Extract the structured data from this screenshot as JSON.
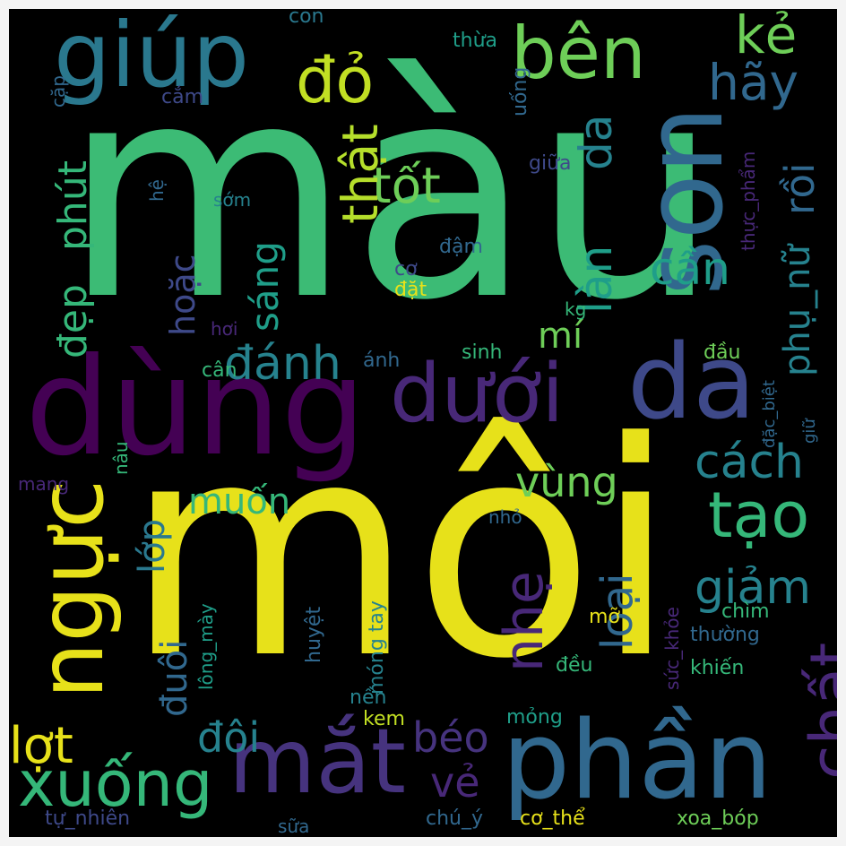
{
  "palette": {
    "yellow": "#e7e11a",
    "lime": "#b5de2b",
    "lightgreen": "#6ece58",
    "green": "#35b779",
    "teal": "#1f9e89",
    "cyan": "#26828e",
    "blue": "#31688e",
    "indigo": "#3e4989",
    "purple": "#482878",
    "violet": "#440154"
  },
  "words": [
    {
      "text": "màu",
      "color": "#3cbb75"
    },
    {
      "text": "môi",
      "color": "#e7e11a"
    },
    {
      "text": "dùng",
      "color": "#440154"
    },
    {
      "text": "da",
      "color": "#3e4989"
    },
    {
      "text": "dưới",
      "color": "#482878"
    },
    {
      "text": "phần",
      "color": "#31688e"
    },
    {
      "text": "mắt",
      "color": "#46337e"
    },
    {
      "text": "ngực",
      "color": "#e7e11a"
    },
    {
      "text": "son",
      "color": "#31688e"
    },
    {
      "text": "giúp",
      "color": "#2a788e"
    },
    {
      "text": "bên",
      "color": "#6ece58"
    },
    {
      "text": "xuống",
      "color": "#35b779"
    },
    {
      "text": "tạo",
      "color": "#35b779"
    },
    {
      "text": "chất",
      "color": "#482878"
    },
    {
      "text": "đỏ",
      "color": "#c2df23"
    },
    {
      "text": "kẻ",
      "color": "#6ece58"
    },
    {
      "text": "hãy",
      "color": "#31688e"
    },
    {
      "text": "tốt",
      "color": "#6ece58"
    },
    {
      "text": "thật",
      "color": "#b5de2b"
    },
    {
      "text": "làn",
      "color": "#1f9e89"
    },
    {
      "text": "da",
      "color": "#26828e"
    },
    {
      "text": "cần",
      "color": "#1f9e89"
    },
    {
      "text": "rồi",
      "color": "#31688e"
    },
    {
      "text": "phụ_nữ",
      "color": "#26828e"
    },
    {
      "text": "đẹp",
      "color": "#35b779"
    },
    {
      "text": "phút",
      "color": "#35b779"
    },
    {
      "text": "sáng",
      "color": "#1f9e89"
    },
    {
      "text": "hoặc",
      "color": "#3e4989"
    },
    {
      "text": "đánh",
      "color": "#26828e"
    },
    {
      "text": "mí",
      "color": "#6ece58"
    },
    {
      "text": "cách",
      "color": "#26828e"
    },
    {
      "text": "vùng",
      "color": "#6ece58"
    },
    {
      "text": "muốn",
      "color": "#35b779"
    },
    {
      "text": "lớp",
      "color": "#2a788e"
    },
    {
      "text": "loại",
      "color": "#31688e"
    },
    {
      "text": "nhẹ",
      "color": "#482878"
    },
    {
      "text": "giảm",
      "color": "#26828e"
    },
    {
      "text": "đuôi",
      "color": "#31688e"
    },
    {
      "text": "đôi",
      "color": "#26828e"
    },
    {
      "text": "béo",
      "color": "#46337e"
    },
    {
      "text": "vẻ",
      "color": "#482878"
    },
    {
      "text": "lợt",
      "color": "#e7e11a"
    },
    {
      "text": "thừa",
      "color": "#1f9e89"
    },
    {
      "text": "uống",
      "color": "#31688e"
    },
    {
      "text": "con",
      "color": "#2a788e"
    },
    {
      "text": "cặp",
      "color": "#31688e"
    },
    {
      "text": "cắm",
      "color": "#3e4989"
    },
    {
      "text": "thực_phẩm",
      "color": "#482878"
    },
    {
      "text": "giữa",
      "color": "#3e4989"
    },
    {
      "text": "hệ",
      "color": "#31688e"
    },
    {
      "text": "sớm",
      "color": "#26828e"
    },
    {
      "text": "đậm",
      "color": "#31688e"
    },
    {
      "text": "cơ",
      "color": "#3e4989"
    },
    {
      "text": "đặt",
      "color": "#e7e11a"
    },
    {
      "text": "kg",
      "color": "#35b779"
    },
    {
      "text": "hơi",
      "color": "#482878"
    },
    {
      "text": "cân",
      "color": "#35b779"
    },
    {
      "text": "ánh",
      "color": "#31688e"
    },
    {
      "text": "sinh",
      "color": "#35b779"
    },
    {
      "text": "đầu",
      "color": "#6ece58"
    },
    {
      "text": "đặc_biệt",
      "color": "#31688e"
    },
    {
      "text": "giữ",
      "color": "#31688e"
    },
    {
      "text": "nâu",
      "color": "#35b779"
    },
    {
      "text": "mang",
      "color": "#482878"
    },
    {
      "text": "nhỏ",
      "color": "#31688e"
    },
    {
      "text": "chìm",
      "color": "#35b779"
    },
    {
      "text": "thường",
      "color": "#31688e"
    },
    {
      "text": "mỡ",
      "color": "#e7e11a"
    },
    {
      "text": "huyệt",
      "color": "#31688e"
    },
    {
      "text": "móng tay",
      "color": "#26828e"
    },
    {
      "text": "lông_mày",
      "color": "#1f9e89"
    },
    {
      "text": "sức_khỏe",
      "color": "#482878"
    },
    {
      "text": "đều",
      "color": "#35b779"
    },
    {
      "text": "khiến",
      "color": "#35b779"
    },
    {
      "text": "nền",
      "color": "#26828e"
    },
    {
      "text": "kem",
      "color": "#c2df23"
    },
    {
      "text": "mỏng",
      "color": "#1f9e89"
    },
    {
      "text": "tự_nhiên",
      "color": "#3e4989"
    },
    {
      "text": "sữa",
      "color": "#31688e"
    },
    {
      "text": "chú_ý",
      "color": "#31688e"
    },
    {
      "text": "cơ_thể",
      "color": "#e7e11a"
    },
    {
      "text": "xoa_bóp",
      "color": "#6ece58"
    }
  ]
}
